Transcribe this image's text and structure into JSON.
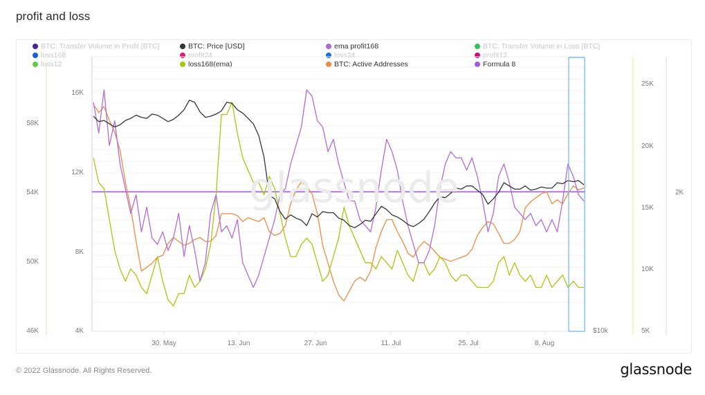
{
  "page": {
    "title": "profit and loss",
    "footer": "© 2022 Glassnode. All Rights Reserved.",
    "logo": "glassnode",
    "watermark": "glassnode"
  },
  "legend": [
    {
      "label": "BTC: Transfer Volume in Profit [BTC]",
      "color": "#4b1fa0",
      "active": false
    },
    {
      "label": "loss168",
      "color": "#1a5de0",
      "active": false
    },
    {
      "label": "loss12",
      "color": "#5cd03c",
      "active": false
    },
    {
      "label": "BTC: Price [USD]",
      "color": "#333333",
      "active": true
    },
    {
      "label": "profit24",
      "color": "#e0197a",
      "active": false
    },
    {
      "label": "loss168(ema)",
      "color": "#a8c80a",
      "active": true
    },
    {
      "label": "ema profit168",
      "color": "#b06ad8",
      "active": true
    },
    {
      "label": "loss24",
      "color": "#1e6fd0",
      "active": false
    },
    {
      "label": "BTC: Active Addresses",
      "color": "#f08a40",
      "active": true
    },
    {
      "label": "BTC: Transfer Volume in Loss [BTC]",
      "color": "#3cc060",
      "active": false
    },
    {
      "label": "profit12",
      "color": "#c80a78",
      "active": false
    },
    {
      "label": "Formula 8",
      "color": "#a05ae8",
      "active": true
    }
  ],
  "chart_data": {
    "type": "line",
    "title": "profit and loss",
    "x_ticks": [
      "30. May",
      "13. Jun",
      "27. Jun",
      "11. Jul",
      "25. Jul",
      "8. Aug"
    ],
    "x_range": [
      "16. May",
      "14. Aug"
    ],
    "axes": {
      "far_left": {
        "ticks": [
          "58K",
          "54K",
          "50K",
          "46K"
        ],
        "range": [
          46000,
          62000
        ]
      },
      "left": {
        "ticks": [
          "16K",
          "12K",
          "8K",
          "4K"
        ],
        "range": [
          4000,
          17500
        ]
      },
      "price": {
        "ticks": [
          "$10k"
        ],
        "range": [
          10000,
          50000
        ]
      },
      "right": {
        "ticks": [
          "25K",
          "20K",
          "15K",
          "10K",
          "5K"
        ],
        "range": [
          5000,
          27000
        ]
      },
      "far_right": {
        "ticks": [
          "2K"
        ]
      }
    },
    "series": [
      {
        "name": "BTC: Price [USD]",
        "color": "#333333",
        "axis": "price",
        "values": [
          30000,
          29500,
          29600,
          29300,
          29000,
          29200,
          29600,
          29800,
          30100,
          29900,
          29800,
          30200,
          30100,
          29800,
          29500,
          29700,
          30100,
          30600,
          31500,
          31300,
          30400,
          29900,
          30000,
          30200,
          30500,
          31300,
          31200,
          30600,
          30300,
          29800,
          29300,
          28200,
          26200,
          22600,
          22300,
          21100,
          20400,
          20800,
          20500,
          20300,
          19800,
          20900,
          20600,
          21100,
          21000,
          21000,
          20500,
          20300,
          19800,
          19600,
          19900,
          20300,
          20200,
          20900,
          21600,
          21300,
          20800,
          20600,
          20300,
          19900,
          19700,
          20000,
          20400,
          21100,
          21900,
          22500,
          22400,
          22800,
          23300,
          23200,
          23500,
          23500,
          23100,
          22700,
          21800,
          22300,
          22900,
          23800,
          23500,
          23200,
          23200,
          23500,
          23100,
          23200,
          23400,
          23300,
          23300,
          23800,
          23700,
          24000,
          23900,
          24000,
          23600
        ]
      },
      {
        "name": "ema profit168",
        "color": "#b06ad8",
        "axis": "right",
        "values": [
          23500,
          21000,
          24500,
          20000,
          22000,
          18500,
          16500,
          14500,
          16000,
          13000,
          15000,
          12500,
          12000,
          13000,
          11500,
          12500,
          14500,
          11000,
          13500,
          11500,
          9000,
          10500,
          14500,
          16000,
          13000,
          13500,
          12500,
          14000,
          10500,
          9500,
          8500,
          9500,
          11000,
          12500,
          14000,
          16000,
          16500,
          18500,
          20000,
          21500,
          24500,
          24000,
          22000,
          21500,
          19500,
          20500,
          18500,
          17000,
          15500,
          15500,
          14000,
          13500,
          13000,
          15000,
          18000,
          20500,
          19500,
          18000,
          15500,
          13500,
          12000,
          10500,
          10500,
          11500,
          13500,
          16500,
          18500,
          19500,
          19000,
          19000,
          18000,
          19000,
          17500,
          15500,
          13000,
          14500,
          17500,
          18500,
          17000,
          15000,
          14500,
          14000,
          14500,
          13500,
          14000,
          13000,
          14000,
          13000,
          15500,
          18500,
          17500,
          16000,
          15500
        ]
      },
      {
        "name": "loss168(ema)",
        "color": "#a8c80a",
        "axis": "right",
        "values": [
          19000,
          17000,
          16500,
          14000,
          11500,
          10000,
          9000,
          10000,
          9500,
          8500,
          8000,
          9500,
          11000,
          9000,
          7500,
          7000,
          8000,
          8000,
          9500,
          8500,
          9000,
          10000,
          12000,
          16000,
          22500,
          22500,
          23500,
          21000,
          19000,
          18000,
          17000,
          17000,
          16000,
          17500,
          16500,
          14500,
          12500,
          11000,
          11000,
          12000,
          12500,
          12000,
          10500,
          9000,
          9500,
          11000,
          12500,
          15000,
          13500,
          12500,
          11500,
          10500,
          10500,
          10000,
          11000,
          10500,
          10000,
          11500,
          10500,
          9500,
          9000,
          10500,
          10500,
          9500,
          10000,
          11000,
          10500,
          9500,
          9000,
          9500,
          9500,
          9000,
          8500,
          8500,
          8500,
          9000,
          10500,
          11000,
          9500,
          10500,
          9500,
          9000,
          9500,
          8500,
          8500,
          9500,
          8500,
          9000,
          9500,
          8500,
          9000,
          8500,
          8500
        ]
      },
      {
        "name": "BTC: Active Addresses",
        "color": "#f08a40",
        "axis": "left",
        "values": [
          15400,
          15000,
          15300,
          14600,
          14000,
          13100,
          11500,
          10200,
          8500,
          7000,
          7200,
          7400,
          7700,
          7800,
          8400,
          8700,
          8500,
          8300,
          8400,
          8600,
          8700,
          8500,
          8500,
          8800,
          9900,
          9900,
          9900,
          9800,
          9500,
          9700,
          9600,
          9500,
          9700,
          9000,
          8800,
          8900,
          9300,
          10400,
          11100,
          11500,
          11300,
          10900,
          9900,
          8300,
          7400,
          6500,
          5800,
          5500,
          6000,
          6500,
          6700,
          6500,
          7000,
          8200,
          9000,
          9600,
          9600,
          9000,
          8500,
          7900,
          7700,
          8200,
          8500,
          8300,
          8000,
          7700,
          7600,
          7500,
          7600,
          7700,
          7800,
          8100,
          8800,
          9200,
          9500,
          9400,
          8900,
          8400,
          8400,
          8600,
          9000,
          10200,
          10500,
          10700,
          10900,
          11000,
          10400,
          10600,
          10400,
          10900,
          11300,
          11100,
          11200
        ]
      },
      {
        "name": "Formula 8",
        "color": "#a05ae8",
        "axis": "left",
        "constant": 11000
      }
    ]
  }
}
